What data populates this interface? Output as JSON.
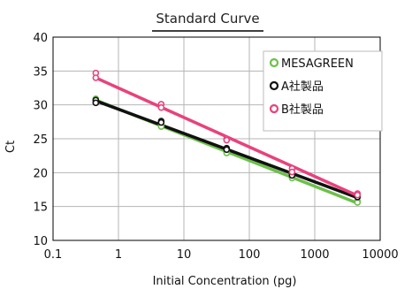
{
  "chart_data": {
    "type": "scatter",
    "title": "Standard Curve",
    "xlabel": "Initial Concentration (pg)",
    "ylabel": "Ct",
    "x_scale": "log",
    "xlim": [
      0.1,
      10000
    ],
    "ylim": [
      10,
      40
    ],
    "x_ticks": [
      "0.1",
      "1",
      "10",
      "100",
      "1000",
      "10000"
    ],
    "y_ticks": [
      "10",
      "15",
      "20",
      "25",
      "30",
      "35",
      "40"
    ],
    "grid": true,
    "legend_position": "top-right",
    "series": [
      {
        "name": "MESAGREEN",
        "color": "#6cc04a",
        "points": [
          [
            0.45,
            30.9
          ],
          [
            0.45,
            30.4
          ],
          [
            4.5,
            27.0
          ],
          [
            4.5,
            26.8
          ],
          [
            45,
            23.1
          ],
          [
            45,
            22.9
          ],
          [
            450,
            19.4
          ],
          [
            450,
            19.2
          ],
          [
            4500,
            15.8
          ],
          [
            4500,
            15.6
          ]
        ],
        "fit": [
          [
            0.45,
            30.7
          ],
          [
            4500,
            15.5
          ]
        ]
      },
      {
        "name": "A社製品",
        "color": "#111111",
        "points": [
          [
            0.45,
            30.7
          ],
          [
            0.45,
            30.3
          ],
          [
            4.5,
            27.6
          ],
          [
            4.5,
            27.4
          ],
          [
            45,
            23.6
          ],
          [
            45,
            23.4
          ],
          [
            450,
            19.9
          ],
          [
            450,
            19.6
          ],
          [
            4500,
            16.6
          ],
          [
            4500,
            16.4
          ]
        ],
        "fit": [
          [
            0.45,
            30.6
          ],
          [
            4500,
            16.3
          ]
        ]
      },
      {
        "name": "B社製品",
        "color": "#e8427c",
        "points": [
          [
            0.45,
            34.7
          ],
          [
            0.45,
            34.0
          ],
          [
            4.5,
            30.1
          ],
          [
            4.5,
            29.6
          ],
          [
            45,
            25.0
          ],
          [
            45,
            24.8
          ],
          [
            450,
            20.6
          ],
          [
            450,
            20.1
          ],
          [
            4500,
            16.9
          ],
          [
            4500,
            16.7
          ]
        ],
        "fit": [
          [
            0.45,
            34.0
          ],
          [
            4500,
            16.6
          ]
        ]
      }
    ]
  }
}
